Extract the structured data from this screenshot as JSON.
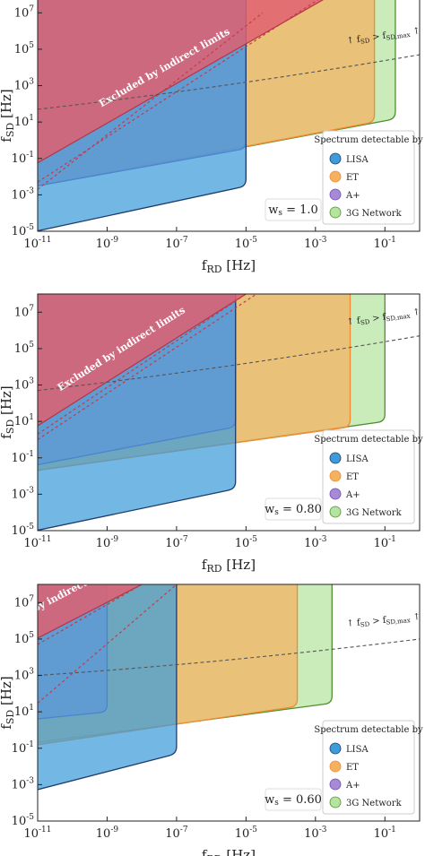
{
  "colors": {
    "red": "#e06070",
    "orange": "#f5b060",
    "green": "#b5e3a0",
    "purple": "#a78ad5",
    "blue": "#3d9bd9",
    "red_edge": "#b2364a",
    "orange_edge": "#f08a30",
    "green_edge": "#4f8f2e",
    "purple_edge": "#6d4ab5",
    "blue_edge": "#1e3c6e",
    "dotted": "#c23b4a",
    "dashed": "#555555"
  },
  "chart_data": [
    {
      "type": "area",
      "xscale": "log",
      "yscale": "log",
      "xlim": [
        1e-11,
        1
      ],
      "ylim": [
        1e-05,
        100000000.0
      ],
      "xlabel": "f_RD [Hz]",
      "ylabel": "f_SD [Hz]",
      "xticks": [
        "10^{-11}",
        "10^{-9}",
        "10^{-7}",
        "10^{-5}",
        "10^{-3}",
        "10^{-1}"
      ],
      "yticks": [
        "10^{-5}",
        "10^{-3}",
        "10^{-1}",
        "10^{1}",
        "10^{3}",
        "10^{5}",
        "10^{7}"
      ],
      "param_label": "w_s = 1.0",
      "excluded_label": "Excluded by indirect limits",
      "annotation": "↑ f_SD > f_SD,max ↑",
      "legend_title": "Spectrum detectable by",
      "legend_items": [
        "LISA",
        "ET",
        "A+",
        "3G Network"
      ],
      "legend_position": "lower-right",
      "detector_regions": [
        {
          "name": "3G Network",
          "bottom": [
            [
              1e-11,
              0.003
            ],
            [
              0.2,
              15
            ]
          ],
          "x_cut": 0.2
        },
        {
          "name": "ET",
          "bottom": [
            [
              1e-11,
              0.003
            ],
            [
              0.05,
              10
            ]
          ],
          "x_cut": 0.05
        },
        {
          "name": "A+",
          "bottom": [
            [
              1e-11,
              0.003
            ],
            [
              1e-05,
              0.35
            ]
          ],
          "x_cut": 1e-05
        },
        {
          "name": "LISA",
          "bottom": [
            [
              1e-11,
              1e-05
            ],
            [
              1e-05,
              0.003
            ]
          ],
          "x_cut": 1e-05
        }
      ],
      "excluded_region": {
        "boundary": [
          [
            1e-11,
            0.05
          ],
          [
            0.003,
            100000000.0
          ]
        ]
      },
      "dotted_curves": [
        [
          [
            1e-11,
            0.002
          ],
          [
            3e-05,
            10000000.0
          ]
        ],
        [
          [
            1e-11,
            0.005
          ],
          [
            0.002,
            100000000.0
          ]
        ]
      ],
      "dashed_curve": [
        [
          1e-11,
          50
        ],
        [
          1,
          50000
        ]
      ]
    },
    {
      "type": "area",
      "xscale": "log",
      "yscale": "log",
      "xlim": [
        1e-11,
        1
      ],
      "ylim": [
        1e-05,
        100000000.0
      ],
      "xlabel": "f_RD [Hz]",
      "ylabel": "f_SD [Hz]",
      "xticks": [
        "10^{-11}",
        "10^{-9}",
        "10^{-7}",
        "10^{-5}",
        "10^{-3}",
        "10^{-1}"
      ],
      "yticks": [
        "10^{-5}",
        "10^{-3}",
        "10^{-1}",
        "10^{1}",
        "10^{3}",
        "10^{5}",
        "10^{7}"
      ],
      "param_label": "w_s = 0.80",
      "excluded_label": "Excluded by indirect limits",
      "annotation": "↑ f_SD > f_SD,max ↑",
      "legend_title": "Spectrum detectable by",
      "legend_items": [
        "LISA",
        "ET",
        "A+",
        "3G Network"
      ],
      "legend_position": "lower-right",
      "detector_regions": [
        {
          "name": "3G Network",
          "bottom": [
            [
              1e-11,
              0.02
            ],
            [
              0.1,
              10
            ]
          ],
          "x_cut": 0.1
        },
        {
          "name": "ET",
          "bottom": [
            [
              1e-11,
              0.02
            ],
            [
              0.01,
              5
            ]
          ],
          "x_cut": 0.01
        },
        {
          "name": "A+",
          "bottom": [
            [
              1e-11,
              0.04
            ],
            [
              5e-06,
              5
            ]
          ],
          "x_cut": 5e-06
        },
        {
          "name": "LISA",
          "bottom": [
            [
              1e-11,
              1e-05
            ],
            [
              5e-06,
              0.002
            ]
          ],
          "x_cut": 5e-06
        }
      ],
      "excluded_region": {
        "boundary": [
          [
            1e-11,
            5
          ],
          [
            1e-05,
            100000000.0
          ]
        ]
      },
      "dotted_curves": [
        [
          [
            1e-11,
            1
          ],
          [
            2e-05,
            100000000.0
          ]
        ],
        [
          [
            1e-11,
            2
          ],
          [
            1e-05,
            100000000.0
          ]
        ]
      ],
      "dashed_curve": [
        [
          1e-11,
          500
        ],
        [
          1,
          500000
        ]
      ]
    },
    {
      "type": "area",
      "xscale": "log",
      "yscale": "log",
      "xlim": [
        1e-11,
        1
      ],
      "ylim": [
        1e-05,
        100000000.0
      ],
      "xlabel": "f_RD [Hz]",
      "ylabel": "f_SD [Hz]",
      "xticks": [
        "10^{-11}",
        "10^{-9}",
        "10^{-7}",
        "10^{-5}",
        "10^{-3}",
        "10^{-1}"
      ],
      "yticks": [
        "10^{-5}",
        "10^{-3}",
        "10^{-1}",
        "10^{1}",
        "10^{3}",
        "10^{5}",
        "10^{7}"
      ],
      "param_label": "w_s = 0.60",
      "excluded_label": "Excluded by indirect limits",
      "annotation": "↑ f_SD > f_SD,max ↑",
      "legend_title": "Spectrum detectable by",
      "legend_items": [
        "LISA",
        "ET",
        "A+",
        "3G Network"
      ],
      "legend_position": "lower-right",
      "detector_regions": [
        {
          "name": "3G Network",
          "bottom": [
            [
              1e-11,
              0.2
            ],
            [
              0.003,
              30
            ]
          ],
          "x_cut": 0.003
        },
        {
          "name": "ET",
          "bottom": [
            [
              1e-11,
              0.15
            ],
            [
              0.0003,
              20
            ]
          ],
          "x_cut": 0.0003
        },
        {
          "name": "A+",
          "bottom": [
            [
              1e-11,
              4
            ],
            [
              1e-09,
              10
            ]
          ],
          "x_cut": 1e-09
        },
        {
          "name": "LISA",
          "bottom": [
            [
              1e-11,
              0.0005
            ],
            [
              1e-07,
              0.05
            ]
          ],
          "x_cut": 1e-07
        }
      ],
      "excluded_region": {
        "boundary": [
          [
            1e-11,
            100000
          ],
          [
            1e-08,
            100000000.0
          ]
        ]
      },
      "dotted_curves": [
        [
          [
            1e-11,
            50000
          ],
          [
            1e-08,
            100000000.0
          ]
        ],
        [
          [
            1e-11,
            30
          ],
          [
            1e-07,
            100000000.0
          ]
        ]
      ],
      "dashed_curve": [
        [
          1e-11,
          1000
        ],
        [
          1,
          100000
        ]
      ]
    }
  ]
}
